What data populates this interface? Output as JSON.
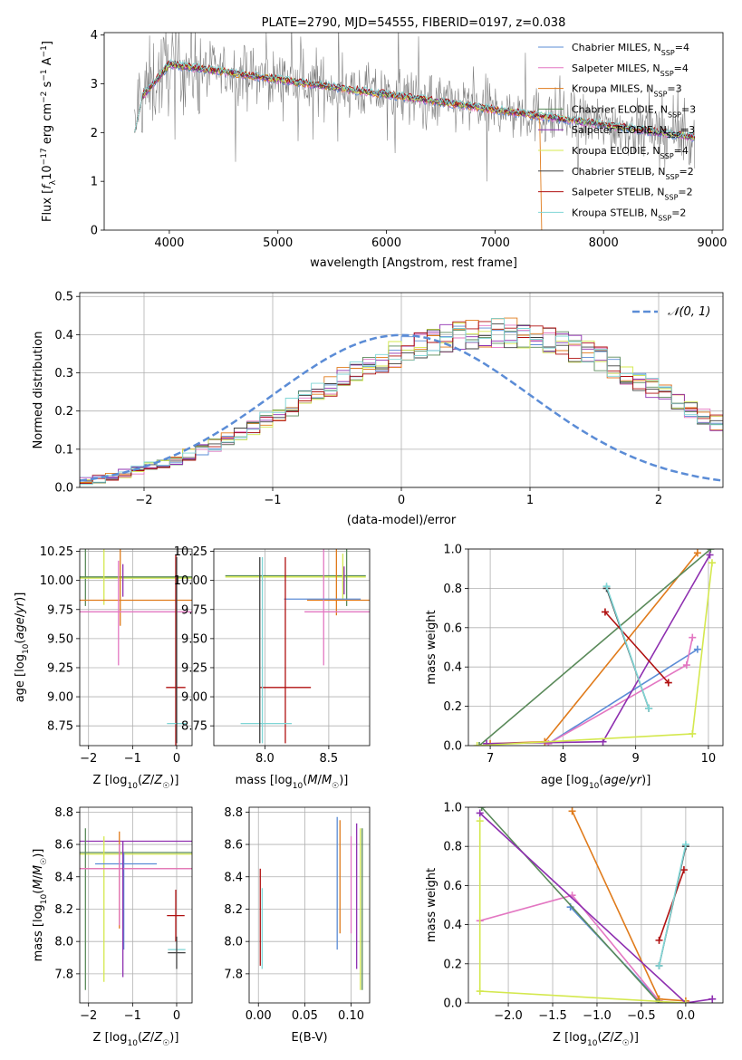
{
  "chart_data": [
    {
      "type": "line",
      "title": "PLATE=2790, MJD=54555, FIBERID=0197, z=0.038",
      "xlabel": "wavelength [Angstrom, rest frame]",
      "ylabel": "Flux [f_λ10^-17 erg cm^-2 s^-1 A^-1]",
      "xlim": [
        3400,
        9100
      ],
      "ylim": [
        0,
        4.05
      ],
      "xticks": [
        4000,
        5000,
        6000,
        7000,
        8000,
        9000
      ],
      "yticks": [
        0,
        1,
        2,
        3,
        4
      ],
      "legend_position": "top-right",
      "observed_color": "#808080",
      "series": [
        {
          "name": "Chabrier MILES, N_SSP=4",
          "label_main": "Chabrier MILES, N",
          "label_sub": "SSP",
          "label_tail": "=4",
          "color": "#5b8cd6"
        },
        {
          "name": "Salpeter MILES, N_SSP=4",
          "label_main": "Salpeter MILES, N",
          "label_sub": "SSP",
          "label_tail": "=4",
          "color": "#e377c2"
        },
        {
          "name": "Kroupa MILES, N_SSP=3",
          "label_main": "Kroupa MILES, N",
          "label_sub": "SSP",
          "label_tail": "=3",
          "color": "#e07b1b"
        },
        {
          "name": "Chabrier ELODIE, N_SSP=3",
          "label_main": "Chabrier ELODIE, N",
          "label_sub": "SSP",
          "label_tail": "=3",
          "color": "#5a8a5a"
        },
        {
          "name": "Salpeter ELODIE, N_SSP=3",
          "label_main": "Salpeter ELODIE, N",
          "label_sub": "SSP",
          "label_tail": "=3",
          "color": "#8e2fb0"
        },
        {
          "name": "Kroupa ELODIE, N_SSP=4",
          "label_main": "Kroupa ELODIE, N",
          "label_sub": "SSP",
          "label_tail": "=4",
          "color": "#d4e84e"
        },
        {
          "name": "Chabrier STELIB, N_SSP=2",
          "label_main": "Chabrier STELIB, N",
          "label_sub": "SSP",
          "label_tail": "=2",
          "color": "#404040"
        },
        {
          "name": "Salpeter STELIB, N_SSP=2",
          "label_main": "Salpeter STELIB, N",
          "label_sub": "SSP",
          "label_tail": "=2",
          "color": "#b01010"
        },
        {
          "name": "Kroupa STELIB, N_SSP=2",
          "label_main": "Kroupa STELIB, N",
          "label_sub": "SSP",
          "label_tail": "=2",
          "color": "#7fd6d6"
        }
      ]
    },
    {
      "type": "area",
      "xlabel": "(data-model)/error",
      "ylabel": "Normed distribution",
      "xlim": [
        -2.5,
        2.5
      ],
      "ylim": [
        0,
        0.51
      ],
      "xticks": [
        -2,
        -1,
        0,
        1,
        2
      ],
      "yticks": [
        0.0,
        0.1,
        0.2,
        0.3,
        0.4,
        0.5
      ],
      "grid": true,
      "legend_position": "top-right",
      "reference_curve": {
        "name": "N(0,1)",
        "label": "𝒩(0, 1)",
        "color": "#5b8cd6",
        "mean": 0,
        "sigma": 1
      },
      "histogram": {
        "bin_start": -2.5,
        "bin_width": 0.1,
        "base_values": [
          0.018,
          0.022,
          0.03,
          0.036,
          0.046,
          0.054,
          0.062,
          0.074,
          0.086,
          0.098,
          0.11,
          0.125,
          0.14,
          0.158,
          0.175,
          0.192,
          0.21,
          0.228,
          0.247,
          0.265,
          0.284,
          0.3,
          0.318,
          0.333,
          0.348,
          0.36,
          0.372,
          0.382,
          0.39,
          0.396,
          0.4,
          0.402,
          0.404,
          0.404,
          0.4,
          0.394,
          0.386,
          0.376,
          0.364,
          0.35,
          0.335,
          0.318,
          0.3,
          0.282,
          0.263,
          0.244,
          0.225,
          0.206,
          0.188,
          0.17,
          0.152,
          0.136,
          0.12,
          0.105,
          0.092,
          0.08,
          0.069,
          0.058,
          0.048,
          0.04
        ],
        "series_colors": [
          "#5b8cd6",
          "#e377c2",
          "#e07b1b",
          "#5a8a5a",
          "#8e2fb0",
          "#d4e84e",
          "#404040",
          "#b01010",
          "#7fd6d6"
        ]
      }
    },
    {
      "type": "scatter",
      "xlabel": "Z [log10(Z/Z☉)]",
      "ylabel": "age  [log10(age/yr)]",
      "xlim": [
        -2.2,
        0.35
      ],
      "ylim": [
        8.58,
        10.27
      ],
      "xticks": [
        -2,
        -1,
        0
      ],
      "yticks": [
        8.75,
        9.0,
        9.25,
        9.5,
        9.75,
        10.0,
        10.25
      ],
      "grid": true,
      "points": [
        {
          "x": -2.07,
          "y": 10.03,
          "xerr": 0.0,
          "yerr": 0.25,
          "color": "#5a8a5a"
        },
        {
          "x": -1.06,
          "y": 10.03,
          "xerr": 2.3,
          "yerr": 0.0,
          "color": "#5a8a5a"
        },
        {
          "x": -1.06,
          "y": 10.02,
          "xerr": 2.3,
          "yerr": 0.0,
          "color": "#d4e84e"
        },
        {
          "x": -1.65,
          "y": 10.04,
          "xerr": 0.0,
          "yerr": 0.25,
          "color": "#d4e84e"
        },
        {
          "x": -1.02,
          "y": 9.83,
          "xerr": 2.2,
          "yerr": 0.0,
          "color": "#e07b1b"
        },
        {
          "x": -1.28,
          "y": 9.96,
          "xerr": 0.0,
          "yerr": 0.35,
          "color": "#e07b1b"
        },
        {
          "x": -1.08,
          "y": 9.73,
          "xerr": 2.3,
          "yerr": 0.0,
          "color": "#e377c2"
        },
        {
          "x": -1.32,
          "y": 9.72,
          "xerr": 0.0,
          "yerr": 0.45,
          "color": "#e377c2"
        },
        {
          "x": -1.22,
          "y": 10.0,
          "xerr": 0.0,
          "yerr": 0.14,
          "color": "#8e2fb0"
        },
        {
          "x": -0.02,
          "y": 9.08,
          "xerr": 0.22,
          "yerr": 0.0,
          "color": "#b01010"
        },
        {
          "x": -0.02,
          "y": 9.4,
          "xerr": 0.0,
          "yerr": 0.82,
          "color": "#b01010"
        },
        {
          "x": 0.0,
          "y": 8.77,
          "xerr": 0.22,
          "yerr": 0.0,
          "color": "#7fd6d6"
        },
        {
          "x": 0.0,
          "y": 9.4,
          "xerr": 0.0,
          "yerr": 0.8,
          "color": "#404040"
        }
      ]
    },
    {
      "type": "scatter",
      "xlabel": "mass [log10(M/M☉)]",
      "ylabel": "",
      "xlim": [
        7.6,
        8.82
      ],
      "ylim": [
        8.58,
        10.27
      ],
      "xticks": [
        8.0,
        8.5
      ],
      "yticks": [
        8.75,
        9.0,
        9.25,
        9.5,
        9.75,
        10.0,
        10.25
      ],
      "grid": true,
      "points": [
        {
          "x": 8.24,
          "y": 10.04,
          "xerr": 0.55,
          "yerr": 0.0,
          "color": "#5a8a5a"
        },
        {
          "x": 8.24,
          "y": 10.03,
          "xerr": 0.55,
          "yerr": 0.0,
          "color": "#d4e84e"
        },
        {
          "x": 8.64,
          "y": 10.04,
          "xerr": 0.0,
          "yerr": 0.26,
          "color": "#5a8a5a"
        },
        {
          "x": 8.61,
          "y": 10.03,
          "xerr": 0.0,
          "yerr": 0.2,
          "color": "#d4e84e"
        },
        {
          "x": 8.62,
          "y": 10.0,
          "xerr": 0.0,
          "yerr": 0.12,
          "color": "#8e2fb0"
        },
        {
          "x": 8.58,
          "y": 9.83,
          "xerr": 0.25,
          "yerr": 0.0,
          "color": "#e07b1b"
        },
        {
          "x": 8.56,
          "y": 10.0,
          "xerr": 0.0,
          "yerr": 0.3,
          "color": "#e07b1b"
        },
        {
          "x": 8.46,
          "y": 9.83,
          "xerr": 0.0,
          "yerr": 0.56,
          "color": "#e377c2"
        },
        {
          "x": 8.58,
          "y": 9.73,
          "xerr": 0.27,
          "yerr": 0.0,
          "color": "#e377c2"
        },
        {
          "x": 8.45,
          "y": 9.84,
          "xerr": 0.3,
          "yerr": 0.0,
          "color": "#5b8cd6"
        },
        {
          "x": 8.16,
          "y": 9.08,
          "xerr": 0.2,
          "yerr": 0.0,
          "color": "#b01010"
        },
        {
          "x": 8.16,
          "y": 9.4,
          "xerr": 0.0,
          "yerr": 0.8,
          "color": "#b01010"
        },
        {
          "x": 8.01,
          "y": 8.77,
          "xerr": 0.2,
          "yerr": 0.0,
          "color": "#7fd6d6"
        },
        {
          "x": 7.96,
          "y": 9.4,
          "xerr": 0.0,
          "yerr": 0.8,
          "color": "#404040"
        },
        {
          "x": 7.98,
          "y": 9.4,
          "xerr": 0.0,
          "yerr": 0.8,
          "color": "#7fd6d6"
        }
      ]
    },
    {
      "type": "line",
      "xlabel": "age  [log10(age/yr)]",
      "ylabel": "mass weight",
      "xlim": [
        6.7,
        10.2
      ],
      "ylim": [
        0,
        1.0
      ],
      "xticks": [
        7,
        8,
        9,
        10
      ],
      "yticks": [
        0.0,
        0.2,
        0.4,
        0.6,
        0.8,
        1.0
      ],
      "grid": true,
      "series": [
        {
          "name": "Chabrier MILES",
          "color": "#5b8cd6",
          "x": [
            7.8,
            9.85
          ],
          "y": [
            0.01,
            0.49
          ]
        },
        {
          "name": "Salpeter MILES",
          "color": "#e377c2",
          "x": [
            7.8,
            9.7,
            9.78
          ],
          "y": [
            0.01,
            0.41,
            0.55
          ]
        },
        {
          "name": "Kroupa MILES",
          "color": "#e07b1b",
          "x": [
            7.0,
            7.75,
            9.85
          ],
          "y": [
            0.01,
            0.02,
            0.98
          ]
        },
        {
          "name": "Chabrier ELODIE",
          "color": "#5a8a5a",
          "x": [
            6.85,
            10.03
          ],
          "y": [
            0.0,
            1.0
          ]
        },
        {
          "name": "Salpeter ELODIE",
          "color": "#8e2fb0",
          "x": [
            6.95,
            8.55,
            10.02
          ],
          "y": [
            0.01,
            0.02,
            0.97
          ]
        },
        {
          "name": "Kroupa ELODIE",
          "color": "#d4e84e",
          "x": [
            6.82,
            9.78,
            10.05
          ],
          "y": [
            0.0,
            0.06,
            0.93
          ]
        },
        {
          "name": "Salpeter STELIB",
          "color": "#b01010",
          "x": [
            8.58,
            9.45
          ],
          "y": [
            0.68,
            0.32
          ]
        },
        {
          "name": "Chabrier STELIB",
          "color": "#404040",
          "x": [
            8.6,
            9.18
          ],
          "y": [
            0.8,
            0.19
          ]
        },
        {
          "name": "Kroupa STELIB",
          "color": "#7fd6d6",
          "x": [
            8.6,
            9.18
          ],
          "y": [
            0.81,
            0.19
          ]
        }
      ]
    },
    {
      "type": "scatter",
      "xlabel": "Z [log10(Z/Z☉)]",
      "ylabel": "mass [log10(M/M☉)]",
      "xlim": [
        -2.2,
        0.35
      ],
      "ylim": [
        7.62,
        8.83
      ],
      "xticks": [
        -2,
        -1,
        0
      ],
      "yticks": [
        7.8,
        8.0,
        8.2,
        8.4,
        8.6,
        8.8
      ],
      "grid": true,
      "points": [
        {
          "x": -1.06,
          "y": 8.62,
          "xerr": 2.3,
          "yerr": 0.0,
          "color": "#8e2fb0"
        },
        {
          "x": -1.06,
          "y": 8.55,
          "xerr": 2.3,
          "yerr": 0.0,
          "color": "#5a8a5a"
        },
        {
          "x": -1.06,
          "y": 8.54,
          "xerr": 2.3,
          "yerr": 0.0,
          "color": "#d4e84e"
        },
        {
          "x": -2.07,
          "y": 8.2,
          "xerr": 0.0,
          "yerr": 0.5,
          "color": "#5a8a5a"
        },
        {
          "x": -1.65,
          "y": 8.2,
          "xerr": 0.0,
          "yerr": 0.45,
          "color": "#d4e84e"
        },
        {
          "x": -1.02,
          "y": 8.45,
          "xerr": 2.2,
          "yerr": 0.0,
          "color": "#e07b1b"
        },
        {
          "x": -1.3,
          "y": 8.38,
          "xerr": 0.0,
          "yerr": 0.3,
          "color": "#e07b1b"
        },
        {
          "x": -1.15,
          "y": 8.48,
          "xerr": 0.7,
          "yerr": 0.0,
          "color": "#5b8cd6"
        },
        {
          "x": -1.2,
          "y": 8.25,
          "xerr": 0.0,
          "yerr": 0.3,
          "color": "#5b8cd6"
        },
        {
          "x": -1.08,
          "y": 8.45,
          "xerr": 2.3,
          "yerr": 0.0,
          "color": "#e377c2"
        },
        {
          "x": -1.3,
          "y": 8.35,
          "xerr": 0.0,
          "yerr": 0.25,
          "color": "#e377c2"
        },
        {
          "x": -1.22,
          "y": 8.2,
          "xerr": 0.0,
          "yerr": 0.42,
          "color": "#8e2fb0"
        },
        {
          "x": -0.02,
          "y": 8.16,
          "xerr": 0.2,
          "yerr": 0.0,
          "color": "#b01010"
        },
        {
          "x": -0.02,
          "y": 8.16,
          "xerr": 0.0,
          "yerr": 0.16,
          "color": "#b01010"
        },
        {
          "x": 0.0,
          "y": 7.95,
          "xerr": 0.2,
          "yerr": 0.0,
          "color": "#7fd6d6"
        },
        {
          "x": 0.0,
          "y": 7.93,
          "xerr": 0.2,
          "yerr": 0.0,
          "color": "#404040"
        },
        {
          "x": 0.0,
          "y": 7.93,
          "xerr": 0.0,
          "yerr": 0.1,
          "color": "#404040"
        }
      ]
    },
    {
      "type": "scatter",
      "xlabel": "E(B-V)",
      "ylabel": "",
      "xlim": [
        -0.01,
        0.12
      ],
      "ylim": [
        7.62,
        8.83
      ],
      "xticks": [
        0.0,
        0.05,
        0.1
      ],
      "xticklabels": [
        "0.00",
        "0.05",
        "0.10"
      ],
      "yticks": [
        7.8,
        8.0,
        8.2,
        8.4,
        8.6,
        8.8
      ],
      "grid": true,
      "points": [
        {
          "x": 0.002,
          "y": 8.15,
          "xerr": 0.0,
          "yerr": 0.3,
          "color": "#b01010"
        },
        {
          "x": 0.004,
          "y": 8.08,
          "xerr": 0.0,
          "yerr": 0.25,
          "color": "#7fd6d6"
        },
        {
          "x": 0.085,
          "y": 8.36,
          "xerr": 0.0,
          "yerr": 0.41,
          "color": "#5b8cd6"
        },
        {
          "x": 0.088,
          "y": 8.4,
          "xerr": 0.0,
          "yerr": 0.35,
          "color": "#e07b1b"
        },
        {
          "x": 0.1,
          "y": 8.35,
          "xerr": 0.0,
          "yerr": 0.3,
          "color": "#e377c2"
        },
        {
          "x": 0.106,
          "y": 8.28,
          "xerr": 0.0,
          "yerr": 0.45,
          "color": "#8e2fb0"
        },
        {
          "x": 0.11,
          "y": 8.2,
          "xerr": 0.0,
          "yerr": 0.5,
          "color": "#d4e84e"
        },
        {
          "x": 0.112,
          "y": 8.2,
          "xerr": 0.0,
          "yerr": 0.5,
          "color": "#5a8a5a"
        }
      ]
    },
    {
      "type": "line",
      "xlabel": "Z [log10(Z/Z☉)]",
      "ylabel": "mass weight",
      "xlim": [
        -2.45,
        0.42
      ],
      "ylim": [
        0,
        1.0
      ],
      "xticks": [
        -2.0,
        -1.5,
        -1.0,
        -0.5,
        0.0
      ],
      "xticklabels": [
        "−2.0",
        "−1.5",
        "−1.0",
        "−0.5",
        "0.0"
      ],
      "yticks": [
        0.0,
        0.2,
        0.4,
        0.6,
        0.8,
        1.0
      ],
      "grid": true,
      "series": [
        {
          "name": "Chabrier MILES",
          "color": "#5b8cd6",
          "x": [
            -1.3,
            -0.3
          ],
          "y": [
            0.49,
            0.01
          ]
        },
        {
          "name": "Salpeter MILES",
          "color": "#e377c2",
          "x": [
            -2.32,
            -1.28,
            -0.3
          ],
          "y": [
            0.42,
            0.55,
            0.01
          ]
        },
        {
          "name": "Kroupa MILES",
          "color": "#e07b1b",
          "x": [
            -1.28,
            -0.3,
            0.0
          ],
          "y": [
            0.98,
            0.02,
            0.01
          ]
        },
        {
          "name": "Chabrier ELODIE",
          "color": "#5a8a5a",
          "x": [
            -2.3,
            -0.3
          ],
          "y": [
            1.0,
            0.0
          ]
        },
        {
          "name": "Salpeter ELODIE",
          "color": "#8e2fb0",
          "x": [
            -2.32,
            0.0,
            0.3
          ],
          "y": [
            0.97,
            0.0,
            0.02
          ]
        },
        {
          "name": "Kroupa ELODIE",
          "color": "#d4e84e",
          "x": [
            -2.32,
            -2.32,
            0.0
          ],
          "y": [
            0.93,
            0.06,
            0.0
          ]
        },
        {
          "name": "Salpeter STELIB",
          "color": "#b01010",
          "x": [
            -0.3,
            -0.02
          ],
          "y": [
            0.32,
            0.68
          ]
        },
        {
          "name": "Chabrier STELIB",
          "color": "#404040",
          "x": [
            -0.3,
            0.0
          ],
          "y": [
            0.19,
            0.8
          ]
        },
        {
          "name": "Kroupa STELIB",
          "color": "#7fd6d6",
          "x": [
            -0.3,
            0.0
          ],
          "y": [
            0.19,
            0.81
          ]
        }
      ]
    }
  ]
}
